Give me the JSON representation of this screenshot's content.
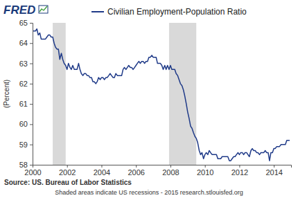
{
  "chart_data": {
    "type": "line",
    "logo": "FRED",
    "ylabel": "(Percent)",
    "source": "Source: US. Bureau of Labor Statistics",
    "note": "Shaded areas indicate US recessions - 2015 research.stlouisfed.org",
    "legend": "top",
    "grid": false,
    "xlim": [
      2000,
      2015
    ],
    "xticks": [
      2000,
      2002,
      2004,
      2006,
      2008,
      2010,
      2012,
      2014
    ],
    "ylim": [
      58,
      65
    ],
    "yticks": [
      58,
      59,
      60,
      61,
      62,
      63,
      64,
      65
    ],
    "recessions": [
      [
        2001.17,
        2001.92
      ],
      [
        2007.92,
        2009.5
      ]
    ],
    "x": [
      2000,
      2000.08,
      2000.17,
      2000.25,
      2000.33,
      2000.42,
      2000.5,
      2000.58,
      2000.67,
      2000.75,
      2000.83,
      2000.92,
      2001,
      2001.08,
      2001.17,
      2001.25,
      2001.33,
      2001.42,
      2001.5,
      2001.58,
      2001.67,
      2001.75,
      2001.83,
      2001.92,
      2002,
      2002.08,
      2002.17,
      2002.25,
      2002.33,
      2002.42,
      2002.5,
      2002.58,
      2002.67,
      2002.75,
      2002.83,
      2002.92,
      2003,
      2003.08,
      2003.17,
      2003.25,
      2003.33,
      2003.42,
      2003.5,
      2003.58,
      2003.67,
      2003.75,
      2003.83,
      2003.92,
      2004,
      2004.08,
      2004.17,
      2004.25,
      2004.33,
      2004.42,
      2004.5,
      2004.58,
      2004.67,
      2004.75,
      2004.83,
      2004.92,
      2005,
      2005.08,
      2005.17,
      2005.25,
      2005.33,
      2005.42,
      2005.5,
      2005.58,
      2005.67,
      2005.75,
      2005.83,
      2005.92,
      2006,
      2006.08,
      2006.17,
      2006.25,
      2006.33,
      2006.42,
      2006.5,
      2006.58,
      2006.67,
      2006.75,
      2006.83,
      2006.92,
      2007,
      2007.08,
      2007.17,
      2007.25,
      2007.33,
      2007.42,
      2007.5,
      2007.58,
      2007.67,
      2007.75,
      2007.83,
      2007.92,
      2008,
      2008.08,
      2008.17,
      2008.25,
      2008.33,
      2008.42,
      2008.5,
      2008.58,
      2008.67,
      2008.75,
      2008.83,
      2008.92,
      2009,
      2009.08,
      2009.17,
      2009.25,
      2009.33,
      2009.42,
      2009.5,
      2009.58,
      2009.67,
      2009.75,
      2009.83,
      2009.92,
      2010,
      2010.08,
      2010.17,
      2010.25,
      2010.33,
      2010.42,
      2010.5,
      2010.58,
      2010.67,
      2010.75,
      2010.83,
      2010.92,
      2011,
      2011.08,
      2011.17,
      2011.25,
      2011.33,
      2011.42,
      2011.5,
      2011.58,
      2011.67,
      2011.75,
      2011.83,
      2011.92,
      2012,
      2012.08,
      2012.17,
      2012.25,
      2012.33,
      2012.42,
      2012.5,
      2012.58,
      2012.67,
      2012.75,
      2012.83,
      2012.92,
      2013,
      2013.08,
      2013.17,
      2013.25,
      2013.33,
      2013.42,
      2013.5,
      2013.58,
      2013.67,
      2013.75,
      2013.83,
      2013.92,
      2014,
      2014.08,
      2014.17,
      2014.25,
      2014.33,
      2014.42,
      2014.5,
      2014.58,
      2014.67,
      2014.75,
      2014.83,
      2014.92
    ],
    "series": [
      {
        "name": "Civilian Employment-Population Ratio",
        "color": "#1f3a88",
        "values": [
          64.6,
          64.6,
          64.6,
          64.7,
          64.4,
          64.5,
          64.2,
          64.2,
          64.2,
          64.2,
          64.3,
          64.4,
          64.4,
          64.3,
          64.3,
          64.0,
          63.8,
          63.7,
          63.7,
          63.2,
          63.5,
          63.2,
          63.0,
          62.9,
          62.7,
          63.0,
          62.8,
          62.7,
          62.9,
          62.7,
          62.7,
          62.7,
          63.0,
          62.7,
          62.5,
          62.4,
          62.5,
          62.5,
          62.4,
          62.4,
          62.3,
          62.3,
          62.1,
          62.1,
          62.0,
          62.1,
          62.3,
          62.2,
          62.3,
          62.3,
          62.2,
          62.3,
          62.3,
          62.4,
          62.5,
          62.4,
          62.3,
          62.3,
          62.5,
          62.4,
          62.4,
          62.4,
          62.4,
          62.7,
          62.8,
          62.7,
          62.8,
          62.9,
          62.8,
          62.8,
          62.7,
          62.8,
          62.9,
          63.0,
          63.1,
          63.0,
          63.1,
          63.1,
          63.0,
          63.1,
          63.1,
          63.3,
          63.3,
          63.4,
          63.3,
          63.3,
          63.3,
          63.0,
          63.0,
          63.0,
          62.9,
          62.7,
          62.9,
          62.7,
          62.9,
          62.7,
          62.9,
          62.7,
          62.7,
          62.7,
          62.5,
          62.4,
          62.2,
          62.0,
          61.9,
          61.7,
          61.4,
          61.0,
          60.6,
          60.3,
          59.9,
          59.8,
          59.6,
          59.4,
          59.3,
          59.1,
          58.7,
          58.5,
          58.6,
          58.3,
          58.5,
          58.6,
          58.5,
          58.7,
          58.6,
          58.5,
          58.5,
          58.5,
          58.5,
          58.3,
          58.3,
          58.3,
          58.4,
          58.4,
          58.4,
          58.4,
          58.4,
          58.2,
          58.2,
          58.3,
          58.4,
          58.4,
          58.5,
          58.6,
          58.5,
          58.6,
          58.6,
          58.5,
          58.6,
          58.6,
          58.5,
          58.4,
          58.7,
          58.8,
          58.7,
          58.7,
          58.6,
          58.6,
          58.5,
          58.6,
          58.6,
          58.6,
          58.7,
          58.6,
          58.6,
          58.2,
          58.6,
          58.6,
          58.8,
          58.8,
          58.9,
          58.9,
          58.9,
          59.0,
          59.0,
          59.0,
          59.0,
          59.2,
          59.2,
          59.2
        ]
      }
    ]
  }
}
